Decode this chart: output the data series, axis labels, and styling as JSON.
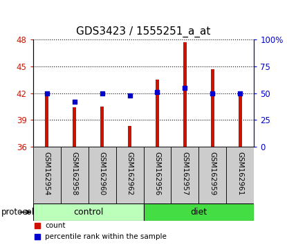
{
  "title": "GDS3423 / 1555251_a_at",
  "samples": [
    "GSM162954",
    "GSM162958",
    "GSM162960",
    "GSM162962",
    "GSM162956",
    "GSM162957",
    "GSM162959",
    "GSM162961"
  ],
  "counts": [
    42.0,
    40.4,
    40.5,
    38.3,
    43.5,
    47.7,
    44.7,
    41.8
  ],
  "percentiles": [
    50,
    42,
    50,
    48,
    51,
    55,
    50,
    50
  ],
  "bar_color": "#cc1100",
  "dot_color": "#0000cc",
  "ylim_left": [
    36,
    48
  ],
  "ylim_right": [
    0,
    100
  ],
  "yticks_left": [
    36,
    39,
    42,
    45,
    48
  ],
  "yticks_right": [
    0,
    25,
    50,
    75,
    100
  ],
  "ytick_labels_right": [
    "0",
    "25",
    "50",
    "75",
    "100%"
  ],
  "groups": [
    {
      "label": "control",
      "indices": [
        0,
        1,
        2,
        3
      ],
      "color": "#bbffbb"
    },
    {
      "label": "diet",
      "indices": [
        4,
        5,
        6,
        7
      ],
      "color": "#44dd44"
    }
  ],
  "protocol_label": "protocol",
  "legend_items": [
    {
      "label": "count",
      "color": "#cc1100"
    },
    {
      "label": "percentile rank within the sample",
      "color": "#0000cc"
    }
  ],
  "grid_color": "black",
  "grid_style": "dotted",
  "bar_width": 0.12,
  "plot_bg": "#ffffff",
  "label_area_bg": "#cccccc",
  "title_fontsize": 11,
  "tick_fontsize": 8.5
}
